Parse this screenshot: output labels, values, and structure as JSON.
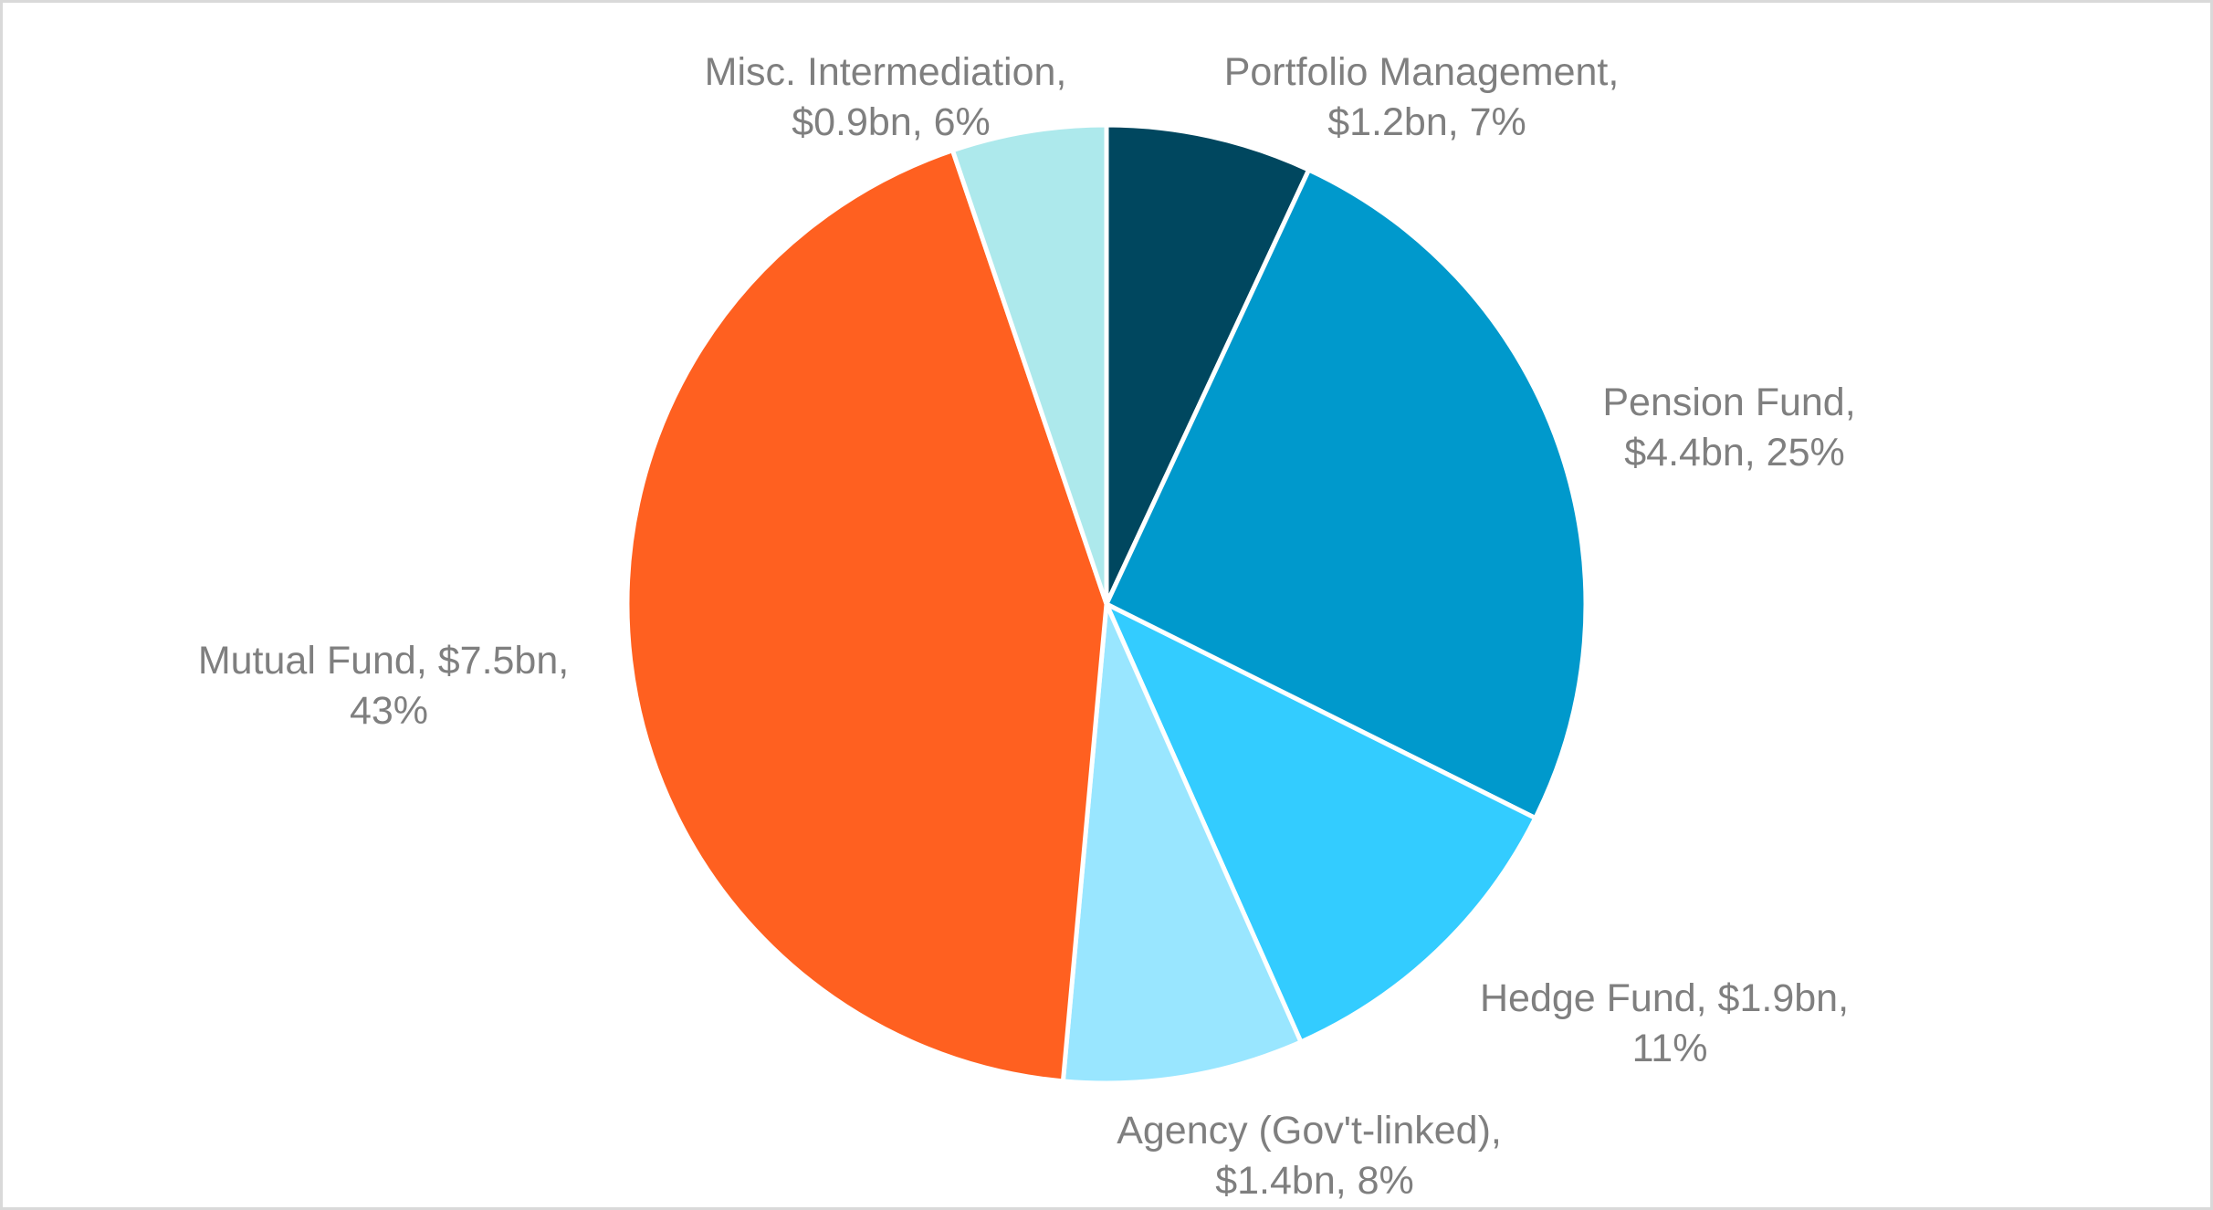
{
  "chart_data": {
    "type": "pie",
    "title": "",
    "start": "12 o'clock",
    "direction": "clockwise",
    "slices": [
      {
        "category": "Portfolio Management",
        "value": 1.2,
        "value_label": "$1.2bn",
        "percent": 7,
        "percent_label": "7%",
        "color": "#00475f",
        "label_lines": [
          "Portfolio Management,",
          "$1.2bn, 7%"
        ]
      },
      {
        "category": "Pension Fund",
        "value": 4.4,
        "value_label": "$4.4bn",
        "percent": 25,
        "percent_label": "25%",
        "color": "#0099cc",
        "label_lines": [
          "Pension Fund,",
          "$4.4bn, 25%"
        ]
      },
      {
        "category": "Hedge Fund",
        "value": 1.9,
        "value_label": "$1.9bn",
        "percent": 11,
        "percent_label": "11%",
        "color": "#33ccff",
        "label_lines": [
          "Hedge Fund, $1.9bn,",
          "11%"
        ]
      },
      {
        "category": "Agency (Gov't-linked)",
        "value": 1.4,
        "value_label": "$1.4bn",
        "percent": 8,
        "percent_label": "8%",
        "color": "#99e6ff",
        "label_lines": [
          "Agency (Gov't-linked),",
          "$1.4bn, 8%"
        ]
      },
      {
        "category": "Mutual Fund",
        "value": 7.5,
        "value_label": "$7.5bn",
        "percent": 43,
        "percent_label": "43%",
        "color": "#ff6020",
        "label_lines": [
          "Mutual Fund, $7.5bn,",
          "43%"
        ]
      },
      {
        "category": "Misc. Intermediation",
        "value": 0.9,
        "value_label": "$0.9bn",
        "percent": 6,
        "percent_label": "6%",
        "color": "#ade9ec",
        "label_lines": [
          "Misc. Intermediation,",
          "$0.9bn, 6%"
        ]
      }
    ]
  }
}
